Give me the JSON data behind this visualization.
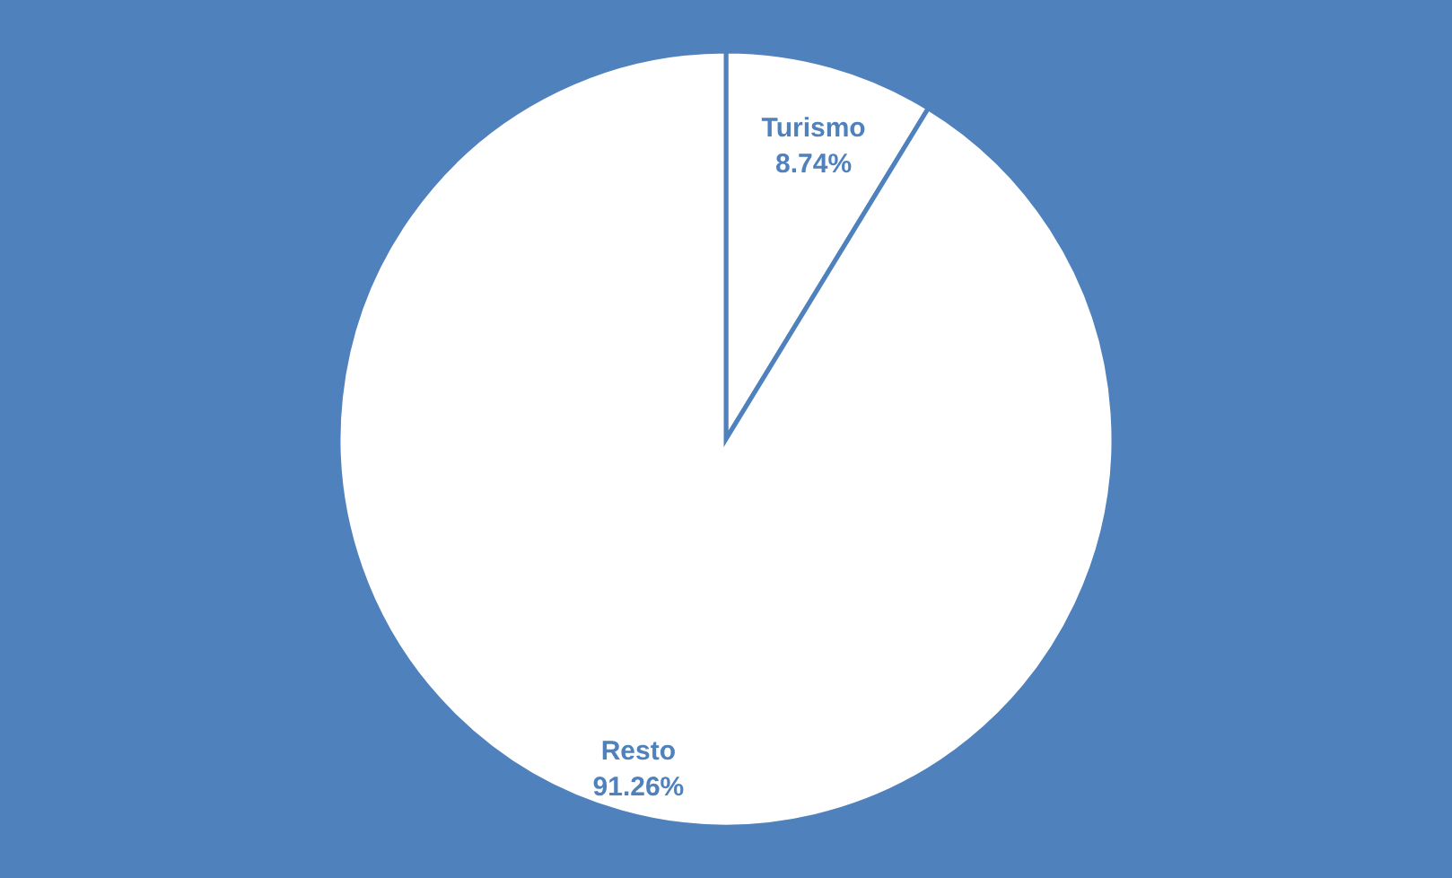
{
  "chart_data": {
    "type": "pie",
    "categories": [
      "Turismo",
      "Resto"
    ],
    "values": [
      8.74,
      91.26
    ],
    "colors": [
      "#ffffff",
      "#ffffff"
    ],
    "value_labels": [
      "8.74%",
      "91.26%"
    ]
  }
}
